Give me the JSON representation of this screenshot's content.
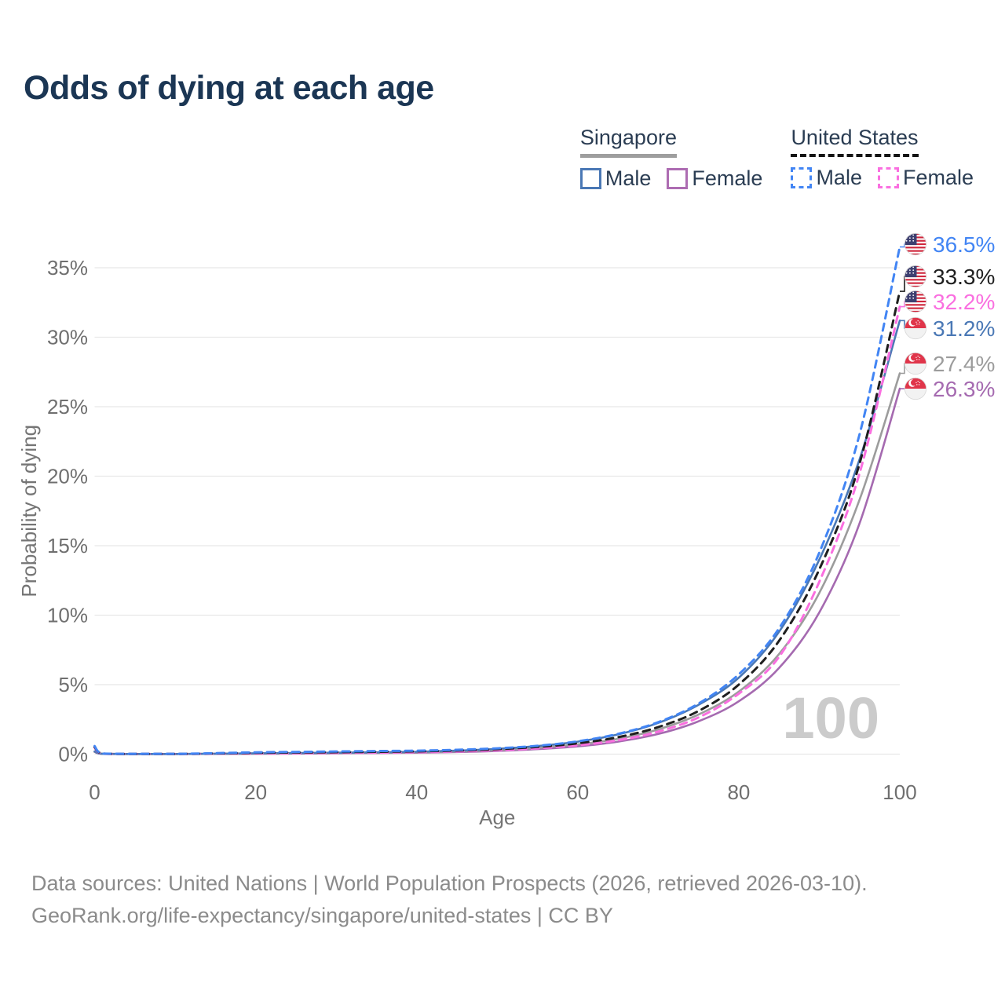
{
  "header": {
    "title": "Odds of dying at each age"
  },
  "legend": {
    "groups": [
      {
        "name": "Singapore",
        "line_style": "solid",
        "underline_color": "#9e9e9e",
        "items": [
          {
            "label": "Male",
            "color": "#4a78b5"
          },
          {
            "label": "Female",
            "color": "#ad6cb2"
          }
        ]
      },
      {
        "name": "United States",
        "line_style": "dashed",
        "underline_color": "#141414",
        "items": [
          {
            "label": "Male",
            "color": "#4285f4"
          },
          {
            "label": "Female",
            "color": "#fa6fe0"
          }
        ]
      }
    ]
  },
  "chart_data": {
    "type": "line",
    "title": "Odds of dying at each age",
    "xlabel": "Age",
    "ylabel": "Probability of dying",
    "xlim": [
      0,
      100
    ],
    "ylim": [
      0,
      35
    ],
    "grid": "horizontal",
    "legend_position": "top-right",
    "age_indicator": "100",
    "x_ticks": [
      0,
      20,
      40,
      60,
      80,
      100
    ],
    "y_ticks": [
      {
        "value": 0,
        "label": "0%"
      },
      {
        "value": 5,
        "label": "5%"
      },
      {
        "value": 10,
        "label": "10%"
      },
      {
        "value": 15,
        "label": "15%"
      },
      {
        "value": 20,
        "label": "20%"
      },
      {
        "value": 25,
        "label": "25%"
      },
      {
        "value": 30,
        "label": "30%"
      },
      {
        "value": 35,
        "label": "35%"
      }
    ],
    "x": [
      0,
      1,
      5,
      10,
      15,
      20,
      25,
      30,
      35,
      40,
      45,
      50,
      55,
      60,
      65,
      70,
      75,
      80,
      85,
      90,
      95,
      100
    ],
    "series": [
      {
        "name": "United States Male",
        "flag": "us",
        "line_style": "dashed",
        "color": "#4285f4",
        "end_value": 36.5,
        "end_label": "36.5%",
        "values": [
          0.58,
          0.04,
          0.02,
          0.02,
          0.07,
          0.13,
          0.16,
          0.19,
          0.22,
          0.25,
          0.31,
          0.42,
          0.6,
          0.92,
          1.46,
          2.3,
          3.64,
          5.74,
          9.05,
          14.5,
          23.0,
          36.5
        ]
      },
      {
        "name": "United States Total",
        "flag": "us",
        "line_style": "dashed",
        "color": "#1f1f1f",
        "end_value": 33.3,
        "end_label": "33.3%",
        "values": [
          0.52,
          0.04,
          0.01,
          0.01,
          0.05,
          0.09,
          0.12,
          0.14,
          0.17,
          0.2,
          0.26,
          0.36,
          0.52,
          0.78,
          1.22,
          1.95,
          3.1,
          5.0,
          8.15,
          13.3,
          20.9,
          33.3
        ]
      },
      {
        "name": "United States Female",
        "flag": "us",
        "line_style": "dashed",
        "color": "#fa6fe0",
        "end_value": 32.2,
        "end_label": "32.2%",
        "values": [
          0.47,
          0.03,
          0.01,
          0.01,
          0.03,
          0.05,
          0.07,
          0.09,
          0.11,
          0.14,
          0.19,
          0.28,
          0.42,
          0.64,
          1.0,
          1.62,
          2.64,
          4.35,
          7.0,
          12.4,
          20.2,
          32.2
        ]
      },
      {
        "name": "Singapore Male",
        "flag": "sg",
        "line_style": "solid",
        "color": "#4a78b5",
        "end_value": 31.2,
        "end_label": "31.2%",
        "values": [
          0.2,
          0.02,
          0.01,
          0.01,
          0.03,
          0.06,
          0.08,
          0.1,
          0.13,
          0.17,
          0.25,
          0.38,
          0.58,
          0.9,
          1.42,
          2.25,
          3.55,
          5.5,
          8.8,
          14.0,
          21.2,
          31.2
        ]
      },
      {
        "name": "Singapore Total",
        "flag": "sg",
        "line_style": "solid",
        "color": "#9c9c9c",
        "end_value": 27.4,
        "end_label": "27.4%",
        "values": [
          0.18,
          0.02,
          0.01,
          0.01,
          0.02,
          0.04,
          0.06,
          0.08,
          0.1,
          0.13,
          0.19,
          0.29,
          0.45,
          0.7,
          1.1,
          1.78,
          2.85,
          4.5,
          7.2,
          11.6,
          18.3,
          27.4
        ]
      },
      {
        "name": "Singapore Female",
        "flag": "sg",
        "line_style": "solid",
        "color": "#a56ab0",
        "end_value": 26.3,
        "end_label": "26.3%",
        "values": [
          0.16,
          0.02,
          0.01,
          0.01,
          0.02,
          0.03,
          0.04,
          0.06,
          0.08,
          0.1,
          0.15,
          0.23,
          0.36,
          0.56,
          0.9,
          1.45,
          2.36,
          3.8,
          6.2,
          10.2,
          16.6,
          26.3
        ]
      }
    ]
  },
  "colors": {
    "title_text": "#1b3654",
    "legend_text": "#2b3d53",
    "axis_text": "#6f6f6f",
    "gridline": "#e8e8e8",
    "watermark": "#cbcbcb",
    "footer_text": "#8b8b8b",
    "us_flag_red": "#d0273d",
    "us_flag_blue": "#3d3f70",
    "sg_flag_red": "#e0354a"
  },
  "footer": {
    "line1": "Data sources: United Nations | World Population Prospects (2026, retrieved 2026-03-10).",
    "line2": "GeoRank.org/life-expectancy/singapore/united-states | CC BY"
  }
}
